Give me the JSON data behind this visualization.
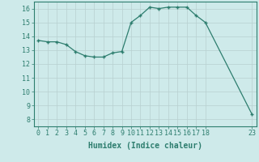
{
  "x": [
    0,
    1,
    2,
    3,
    4,
    5,
    6,
    7,
    8,
    9,
    10,
    11,
    12,
    13,
    14,
    15,
    16,
    17,
    18,
    23
  ],
  "y": [
    13.7,
    13.6,
    13.6,
    13.4,
    12.9,
    12.6,
    12.5,
    12.5,
    12.8,
    12.9,
    15.0,
    15.5,
    16.1,
    16.0,
    16.1,
    16.1,
    16.1,
    15.5,
    15.0,
    8.4
  ],
  "line_color": "#2d7d6e",
  "marker_color": "#2d7d6e",
  "bg_color": "#ceeaea",
  "grid_color": "#b8d0d0",
  "axis_color": "#2d7d6e",
  "xlabel": "Humidex (Indice chaleur)",
  "xlim": [
    -0.5,
    23.5
  ],
  "ylim": [
    7.5,
    16.5
  ],
  "yticks": [
    8,
    9,
    10,
    11,
    12,
    13,
    14,
    15,
    16
  ],
  "xticks": [
    0,
    1,
    2,
    3,
    4,
    5,
    6,
    7,
    8,
    9,
    10,
    11,
    12,
    13,
    14,
    15,
    16,
    17,
    18,
    23
  ],
  "tick_font_size": 6,
  "label_font_size": 7
}
